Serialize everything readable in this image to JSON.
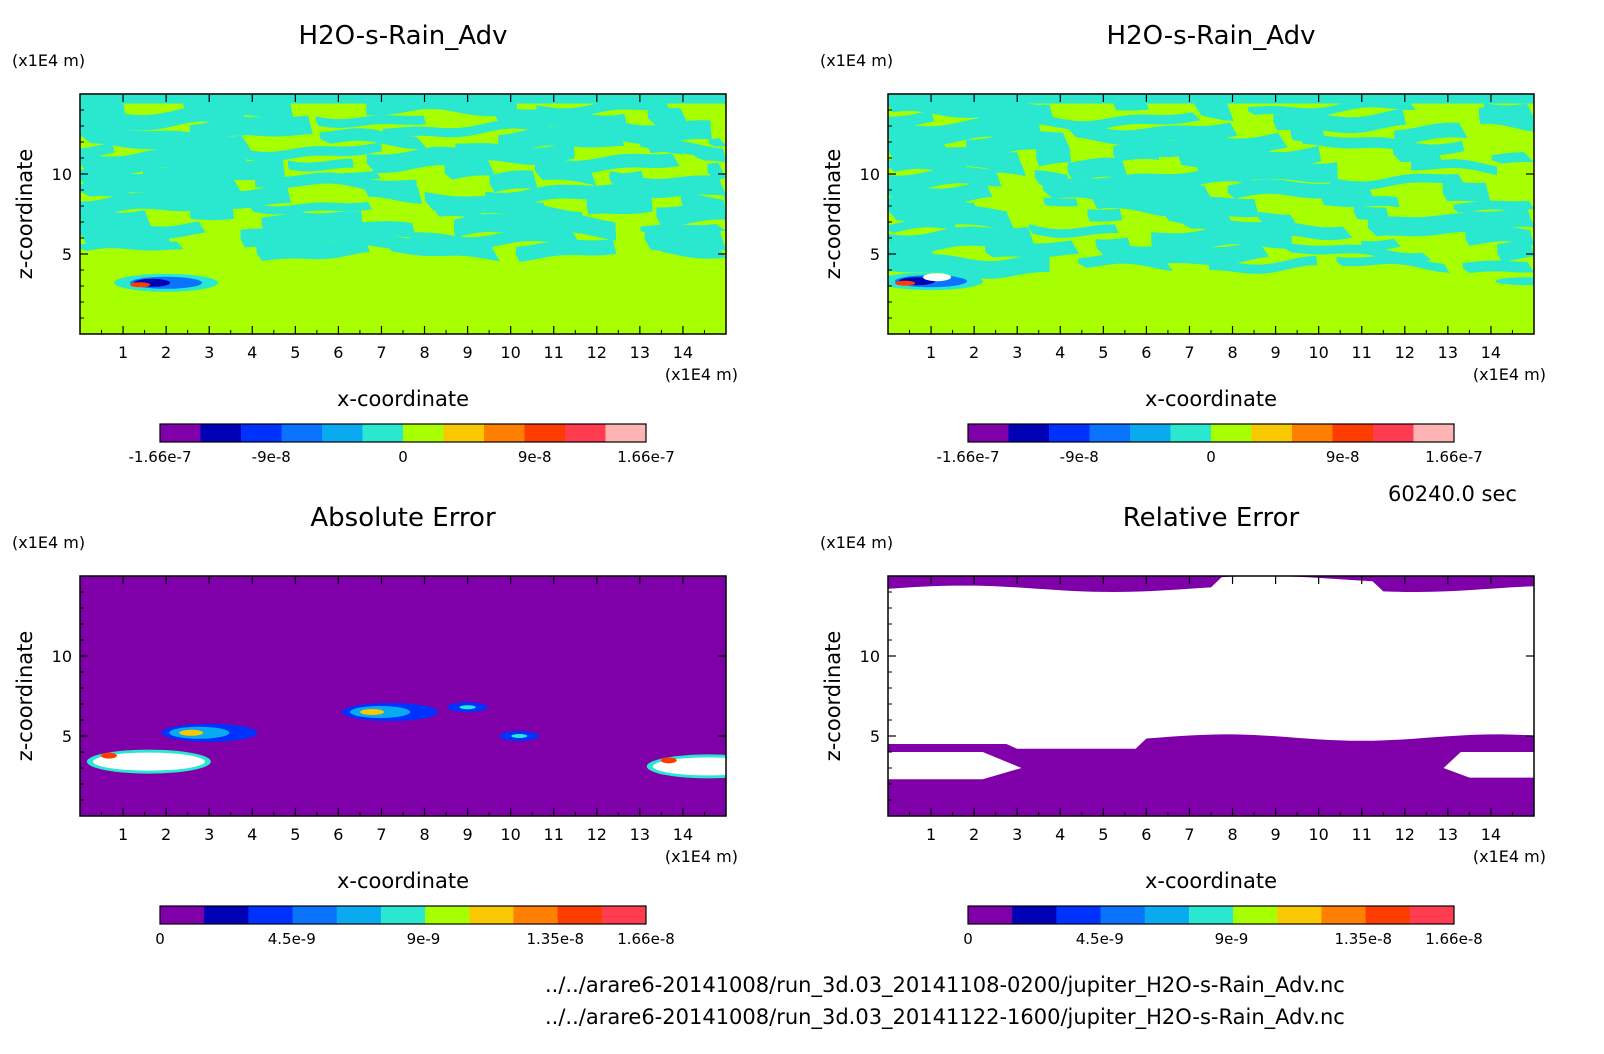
{
  "colors": {
    "background": "#ffffff",
    "level_purple": "#7f00a8",
    "level_green": "#a8ff00",
    "level_cyan": "#2ae8d0",
    "relative_purple": "#7f00a8"
  },
  "meta": {
    "time_label": "60240.0 sec",
    "file_paths": [
      "../../arare6-20141008/run_3d.03_20141108-0200/jupiter_H2O-s-Rain_Adv.nc",
      "../../arare6-20141008/run_3d.03_20141122-1600/jupiter_H2O-s-Rain_Adv.nc"
    ]
  },
  "chart_data": [
    {
      "type": "heatmap",
      "title": "H2O-s-Rain_Adv",
      "xlabel": "x-coordinate",
      "ylabel": "z-coordinate",
      "x_unit": "(x1E4 m)",
      "y_unit": "(x1E4 m)",
      "xlim": [
        0,
        15
      ],
      "ylim": [
        0,
        15
      ],
      "x_ticks": [
        "1",
        "2",
        "3",
        "4",
        "5",
        "6",
        "7",
        "8",
        "9",
        "10",
        "11",
        "12",
        "13",
        "14"
      ],
      "y_ticks": [
        "5",
        "10"
      ],
      "colorbar": {
        "colors": [
          "#7f00a8",
          "#0000b4",
          "#0032ff",
          "#0a74ff",
          "#0aaaf0",
          "#2ae8d0",
          "#a8ff00",
          "#f8c800",
          "#ff8000",
          "#ff3c00",
          "#ff3c50",
          "#ffb4b4"
        ],
        "tick_labels": [
          "-1.66e-7",
          "-9e-8",
          "0",
          "9e-8",
          "1.66e-7"
        ],
        "tick_values": [
          -1.66e-07,
          -9e-08,
          0,
          9e-08,
          1.66e-07
        ],
        "range": [
          -1.66e-07,
          1.66e-07
        ]
      },
      "features": {
        "background_level": 0,
        "cyan_band_z": [
          5,
          14.5
        ],
        "hotspot": {
          "x": 2,
          "z": 3.2
        }
      }
    },
    {
      "type": "heatmap",
      "title": "H2O-s-Rain_Adv",
      "xlabel": "x-coordinate",
      "ylabel": "z-coordinate",
      "x_unit": "(x1E4 m)",
      "y_unit": "(x1E4 m)",
      "xlim": [
        0,
        15
      ],
      "ylim": [
        0,
        15
      ],
      "x_ticks": [
        "1",
        "2",
        "3",
        "4",
        "5",
        "6",
        "7",
        "8",
        "9",
        "10",
        "11",
        "12",
        "13",
        "14"
      ],
      "y_ticks": [
        "5",
        "10"
      ],
      "colorbar": {
        "colors": [
          "#7f00a8",
          "#0000b4",
          "#0032ff",
          "#0a74ff",
          "#0aaaf0",
          "#2ae8d0",
          "#a8ff00",
          "#f8c800",
          "#ff8000",
          "#ff3c00",
          "#ff3c50",
          "#ffb4b4"
        ],
        "tick_labels": [
          "-1.66e-7",
          "-9e-8",
          "0",
          "9e-8",
          "1.66e-7"
        ],
        "tick_values": [
          -1.66e-07,
          -9e-08,
          0,
          9e-08,
          1.66e-07
        ],
        "range": [
          -1.66e-07,
          1.66e-07
        ]
      },
      "features": {
        "background_level": 0,
        "cyan_band_z": [
          4,
          14.5
        ],
        "hotspot": {
          "x": 1,
          "z": 3.3
        }
      }
    },
    {
      "type": "heatmap",
      "title": "Absolute Error",
      "xlabel": "x-coordinate",
      "ylabel": "z-coordinate",
      "x_unit": "(x1E4 m)",
      "y_unit": "(x1E4 m)",
      "xlim": [
        0,
        15
      ],
      "ylim": [
        0,
        15
      ],
      "x_ticks": [
        "1",
        "2",
        "3",
        "4",
        "5",
        "6",
        "7",
        "8",
        "9",
        "10",
        "11",
        "12",
        "13",
        "14"
      ],
      "y_ticks": [
        "5",
        "10"
      ],
      "colorbar": {
        "colors": [
          "#7f00a8",
          "#0000b4",
          "#0032ff",
          "#0a74ff",
          "#0aaaf0",
          "#2ae8d0",
          "#a8ff00",
          "#f8c800",
          "#ff8000",
          "#ff3c00",
          "#ff3c50"
        ],
        "tick_labels": [
          "0",
          "4.5e-9",
          "9e-9",
          "1.35e-8",
          "1.66e-8"
        ],
        "tick_values": [
          0,
          4.5e-09,
          9e-09,
          1.35e-08,
          1.66e-08
        ],
        "range": [
          0,
          1.66e-08
        ]
      },
      "features": {
        "background_level": 0,
        "blobs": [
          {
            "x": 1.6,
            "z": 3.4,
            "level": "high"
          },
          {
            "x": 3.0,
            "z": 5.2,
            "level": "mid"
          },
          {
            "x": 7.2,
            "z": 6.5,
            "level": "mid"
          },
          {
            "x": 9.0,
            "z": 6.8,
            "level": "low"
          },
          {
            "x": 10.2,
            "z": 5.0,
            "level": "low"
          },
          {
            "x": 14.6,
            "z": 3.1,
            "level": "high"
          }
        ]
      }
    },
    {
      "type": "heatmap",
      "title": "Relative Error",
      "xlabel": "x-coordinate",
      "ylabel": "z-coordinate",
      "x_unit": "(x1E4 m)",
      "y_unit": "(x1E4 m)",
      "xlim": [
        0,
        15
      ],
      "ylim": [
        0,
        15
      ],
      "x_ticks": [
        "1",
        "2",
        "3",
        "4",
        "5",
        "6",
        "7",
        "8",
        "9",
        "10",
        "11",
        "12",
        "13",
        "14"
      ],
      "y_ticks": [
        "5",
        "10"
      ],
      "colorbar": {
        "colors": [
          "#7f00a8",
          "#0000b4",
          "#0032ff",
          "#0a74ff",
          "#0aaaf0",
          "#2ae8d0",
          "#a8ff00",
          "#f8c800",
          "#ff8000",
          "#ff3c00",
          "#ff3c50"
        ],
        "tick_labels": [
          "0",
          "4.5e-9",
          "9e-9",
          "1.35e-8",
          "1.66e-8"
        ],
        "tick_values": [
          0,
          4.5e-09,
          9e-09,
          1.35e-08,
          1.66e-08
        ],
        "range": [
          0,
          1.66e-08
        ]
      },
      "features": {
        "top_band_z": [
          14.2,
          15
        ],
        "bottom_band_z": [
          0,
          4.8
        ]
      }
    }
  ]
}
